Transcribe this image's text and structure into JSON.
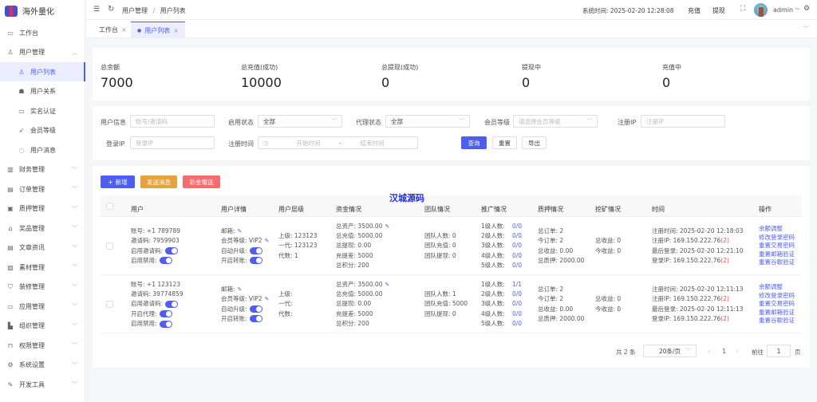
{
  "app": {
    "title": "海外量化"
  },
  "sidebar": {
    "items": [
      {
        "label": "工作台",
        "icon": "monitor-icon",
        "glyph": "▭"
      },
      {
        "label": "用户管理",
        "icon": "user-icon",
        "glyph": "♙",
        "expanded": true
      },
      {
        "label": "用户列表",
        "icon": "user-icon",
        "glyph": "♙",
        "sub": true,
        "active": true
      },
      {
        "label": "用户关系",
        "icon": "users-icon",
        "glyph": "☗",
        "sub": true
      },
      {
        "label": "实名认证",
        "icon": "id-card-icon",
        "glyph": "▭",
        "sub": true
      },
      {
        "label": "会员等级",
        "icon": "rocket-icon",
        "glyph": "➶",
        "sub": true
      },
      {
        "label": "用户消息",
        "icon": "chat-icon",
        "glyph": "◌",
        "sub": true
      },
      {
        "label": "财务管理",
        "icon": "chart-icon",
        "glyph": "▥"
      },
      {
        "label": "订单管理",
        "icon": "order-icon",
        "glyph": "▤"
      },
      {
        "label": "质押管理",
        "icon": "stack-icon",
        "glyph": "▣"
      },
      {
        "label": "奖品管理",
        "icon": "bag-icon",
        "glyph": "⌂"
      },
      {
        "label": "文章资讯",
        "icon": "article-icon",
        "glyph": "▤"
      },
      {
        "label": "素材管理",
        "icon": "image-icon",
        "glyph": "▨"
      },
      {
        "label": "装修管理",
        "icon": "brush-icon",
        "glyph": "⛉"
      },
      {
        "label": "应用管理",
        "icon": "app-icon",
        "glyph": "▭"
      },
      {
        "label": "组织管理",
        "icon": "building-icon",
        "glyph": "▙"
      },
      {
        "label": "权限管理",
        "icon": "lock-icon",
        "glyph": "⊓"
      },
      {
        "label": "系统设置",
        "icon": "gear-icon",
        "glyph": "⚙"
      },
      {
        "label": "开发工具",
        "icon": "pen-icon",
        "glyph": "✎"
      }
    ]
  },
  "header": {
    "breadcrumb": [
      "用户管理",
      "用户列表"
    ],
    "system_time_label": "系统时间:",
    "system_time": "2025-02-20 12:28:08",
    "recharge": "充值",
    "withdraw": "提现",
    "user": "admin"
  },
  "tabs": [
    {
      "label": "工作台",
      "active": false
    },
    {
      "label": "用户列表",
      "active": true
    }
  ],
  "stats": [
    {
      "label": "总余额",
      "value": "7000"
    },
    {
      "label": "总充值(成功)",
      "value": "10000"
    },
    {
      "label": "总提现(成功)",
      "value": "0"
    },
    {
      "label": "提现中",
      "value": "0"
    },
    {
      "label": "充值中",
      "value": "0"
    }
  ],
  "filters": {
    "user_info": {
      "label": "用户信息",
      "placeholder": "账号/邀请码"
    },
    "enable_status": {
      "label": "启用状态",
      "value": "全部"
    },
    "agent_status": {
      "label": "代理状态",
      "value": "全部"
    },
    "member_level": {
      "label": "会员等级",
      "placeholder": "请选择会员等级"
    },
    "register_ip": {
      "label": "注册IP",
      "placeholder": "注册IP"
    },
    "login_ip": {
      "label": "登录IP",
      "placeholder": "登录IP"
    },
    "register_time": {
      "label": "注册时间",
      "start": "开始时间",
      "sep": "-",
      "end": "结束时间"
    },
    "query": "查询",
    "reset": "重置",
    "export": "导出"
  },
  "toolbar": {
    "add": "新增",
    "send_message": "发送消息",
    "bonus": "彩金赠送",
    "watermark": "汉城源码"
  },
  "colors": {
    "primary": "#4e5ef0",
    "warning": "#e6a23c",
    "danger": "#f56c6c"
  },
  "table": {
    "columns": [
      "用户",
      "用户详情",
      "用户层级",
      "资金情况",
      "团队情况",
      "推广情况",
      "质押情况",
      "挖矿情况",
      "时间",
      "操作"
    ],
    "rows": [
      {
        "user": [
          {
            "t": "账号: +1 789789"
          },
          {
            "t": "邀请码: 7959903"
          },
          {
            "t": "启用邀请码:",
            "toggle": true
          },
          {
            "t": "启用禁用:",
            "toggle": true
          }
        ],
        "detail": [
          {
            "t": "邮箱:",
            "edit": true
          },
          {
            "t": "会员等级: VIP2",
            "edit": true
          },
          {
            "t": "自动升级:",
            "toggle": true
          },
          {
            "t": "开启转账:",
            "toggle": true
          }
        ],
        "level": [
          "上级: 123123",
          "一代: 123123",
          "代数: 1"
        ],
        "funds": [
          {
            "t": "总资产: 3500.00",
            "edit": true
          },
          {
            "t": "总充值: 5000.00"
          },
          {
            "t": "总提现: 0.00"
          },
          {
            "t": "充提差:  5000"
          },
          {
            "t": "总积分: 200"
          }
        ],
        "team": [
          "团队人数: 0",
          "团队充值: 0",
          "团队提现: 0"
        ],
        "promo": [
          [
            "1级人数:",
            "0/0"
          ],
          [
            "2级人数:",
            "0/0"
          ],
          [
            "3级人数:",
            "0/0"
          ],
          [
            "4级人数:",
            "0/0"
          ],
          [
            "5级人数:",
            "0/0"
          ]
        ],
        "pledge": [
          "总订单: 2",
          "今订单: 2",
          "总收益: 0.00",
          "总质押: 2000.00"
        ],
        "mining": [
          "总收益: 0",
          "今收益: 0"
        ],
        "time": [
          [
            "注册时间: 2025-02-20 12:18:03",
            ""
          ],
          [
            "注册IP: 169.150.222.76 ",
            "(2)"
          ],
          [
            "最后登录: 2025-02-20 12:21:10",
            ""
          ],
          [
            "登录IP: 169.150.222.76 ",
            "(2)"
          ]
        ],
        "actions": [
          "余额调整",
          "修改登录密码",
          "重置交易密码",
          "重置邮箱验证",
          "重置谷歌验证"
        ]
      },
      {
        "user": [
          {
            "t": "账号: +1 123123"
          },
          {
            "t": "邀请码: 39774859"
          },
          {
            "t": "启用邀请码:",
            "toggle": true
          },
          {
            "t": "开启代理:",
            "toggle": true
          },
          {
            "t": "启用禁用:",
            "toggle": true
          }
        ],
        "detail": [
          {
            "t": "邮箱:",
            "edit": true
          },
          {
            "t": "会员等级: VIP2",
            "edit": true
          },
          {
            "t": "自动升级:",
            "toggle": true
          },
          {
            "t": "开启转账:",
            "toggle": true
          }
        ],
        "level": [
          "上级:",
          "一代:",
          "代数:"
        ],
        "funds": [
          {
            "t": "总资产: 3500.00",
            "edit": true
          },
          {
            "t": "总充值: 5000.00"
          },
          {
            "t": "总提现: 0.00"
          },
          {
            "t": "充提差:  5000"
          },
          {
            "t": "总积分: 200"
          }
        ],
        "team": [
          "团队人数: 1",
          "团队充值: 5000",
          "团队提现: 0"
        ],
        "promo": [
          [
            "1级人数:",
            "1/1"
          ],
          [
            "2级人数:",
            "0/0"
          ],
          [
            "3级人数:",
            "0/0"
          ],
          [
            "4级人数:",
            "0/0"
          ],
          [
            "5级人数:",
            "0/0"
          ]
        ],
        "pledge": [
          "总订单: 2",
          "今订单: 2",
          "总收益: 0.00",
          "总质押: 2000.00"
        ],
        "mining": [
          "总收益: 0",
          "今收益: 0"
        ],
        "time": [
          [
            "注册时间: 2025-02-20 12:11:13",
            ""
          ],
          [
            "注册IP: 169.150.222.76 ",
            "(2)"
          ],
          [
            "最后登录: 2025-02-20 12:11:13",
            ""
          ],
          [
            "登录IP: 169.150.222.76 ",
            "(2)"
          ]
        ],
        "actions": [
          "余额调整",
          "修改登录密码",
          "重置交易密码",
          "重置邮箱验证",
          "重置谷歌验证"
        ]
      }
    ]
  },
  "pagination": {
    "total": "共 2 条",
    "page_size": "20条/页",
    "current": "1",
    "goto_label": "前往",
    "goto_value": "1",
    "page_suffix": "页"
  }
}
